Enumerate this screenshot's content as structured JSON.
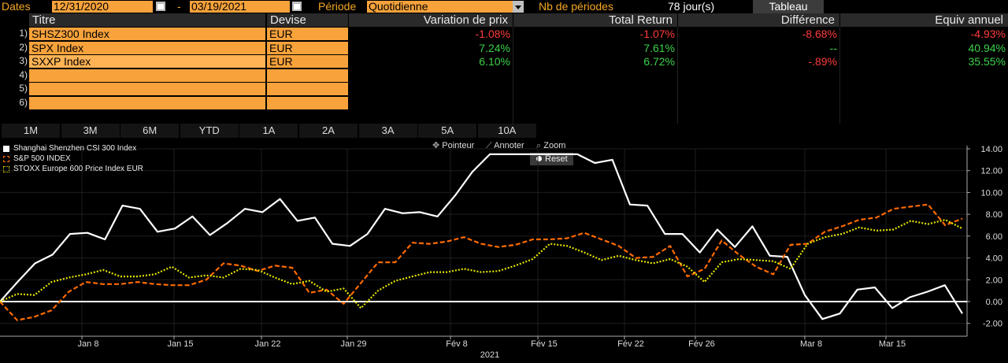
{
  "topbar": {
    "dates_label": "Dates",
    "start_date": "12/31/2020",
    "dash": "-",
    "end_date": "03/19/2021",
    "period_label": "Période",
    "period_value": "Quotidienne",
    "nb_label": "Nb de périodes",
    "nb_value": "78 jour(s)",
    "view_button": "Tableau"
  },
  "table": {
    "headers": {
      "title": "Titre",
      "currency": "Devise",
      "price_change": "Variation de prix",
      "total_return": "Total Return",
      "difference": "Différence",
      "annual_equiv": "Equiv annuel"
    },
    "rows": [
      {
        "num": "1)",
        "title": "SHSZ300 Index",
        "currency": "EUR",
        "price_change": "-1.08%",
        "total_return": "-1.07%",
        "difference": "-8.68%",
        "annual_equiv": "-4.93%"
      },
      {
        "num": "2)",
        "title": "SPX Index",
        "currency": "EUR",
        "price_change": "7.24%",
        "total_return": "7.61%",
        "difference": "--",
        "annual_equiv": "40.94%"
      },
      {
        "num": "3)",
        "title": "SXXP Index",
        "currency": "EUR",
        "price_change": "6.10%",
        "total_return": "6.72%",
        "difference": "-.89%",
        "annual_equiv": "35.55%"
      },
      {
        "num": "4)",
        "title": "",
        "currency": "",
        "price_change": "",
        "total_return": "",
        "difference": "",
        "annual_equiv": ""
      },
      {
        "num": "5)",
        "title": "",
        "currency": "",
        "price_change": "",
        "total_return": "",
        "difference": "",
        "annual_equiv": ""
      },
      {
        "num": "6)",
        "title": "",
        "currency": "",
        "price_change": "",
        "total_return": "",
        "difference": "",
        "annual_equiv": ""
      }
    ]
  },
  "ranges": [
    "1M",
    "3M",
    "6M",
    "YTD",
    "1A",
    "2A",
    "3A",
    "5A",
    "10A"
  ],
  "tools": {
    "pointer": "Pointeur",
    "annotate": "Annoter",
    "zoom": "Zoom",
    "reset": "Reset"
  },
  "colors": {
    "accent": "#f7a23b",
    "negative": "#ff3b3b",
    "positive": "#3cd24a"
  },
  "chart_data": {
    "type": "line",
    "xlabel": "2021",
    "x_ticks": [
      "Jan 8",
      "Jan 15",
      "Jan 22",
      "Jan 29",
      "Fév 8",
      "Fév 15",
      "Fév 22",
      "Fév 26",
      "Mar 8",
      "Mar 15"
    ],
    "y_ticks": [
      "14.00",
      "12.00",
      "10.00",
      "8.00",
      "6.00",
      "4.00",
      "2.00",
      "0.00",
      "-2.00"
    ],
    "ylim": [
      -3.3,
      14.6
    ],
    "grid": true,
    "legend_position": "top-left",
    "series": [
      {
        "name": "Shanghai Shenzhen CSI 300 Index",
        "color": "#ffffff",
        "style": "solid",
        "values": [
          0.0,
          1.8,
          3.5,
          4.3,
          6.2,
          6.3,
          5.7,
          8.8,
          8.5,
          6.4,
          6.7,
          7.8,
          6.1,
          7.2,
          8.5,
          8.2,
          9.4,
          7.4,
          7.7,
          5.3,
          5.1,
          6.2,
          8.5,
          8.1,
          8.2,
          7.8,
          9.7,
          11.9,
          13.5,
          13.5,
          13.5,
          13.5,
          13.5,
          13.5,
          12.7,
          13.0,
          8.9,
          8.8,
          6.2,
          6.2,
          4.5,
          6.6,
          5.0,
          6.9,
          4.2,
          4.1,
          0.6,
          -1.6,
          -1.1,
          1.1,
          1.3,
          -0.6,
          0.4,
          0.9,
          1.5,
          -1.1
        ]
      },
      {
        "name": "S&P 500 INDEX",
        "color": "#ff6a00",
        "style": "dashed",
        "values": [
          0.0,
          -1.7,
          -1.4,
          -0.8,
          0.9,
          1.8,
          1.6,
          1.6,
          1.8,
          1.6,
          1.5,
          1.5,
          2.0,
          3.5,
          3.3,
          2.8,
          3.3,
          3.1,
          0.8,
          1.1,
          -0.2,
          1.7,
          3.6,
          3.6,
          5.4,
          5.3,
          5.5,
          5.9,
          5.3,
          5.0,
          5.2,
          5.7,
          5.7,
          5.8,
          6.3,
          5.7,
          5.1,
          4.0,
          4.1,
          5.1,
          2.3,
          3.0,
          5.6,
          4.3,
          3.2,
          2.5,
          5.2,
          5.3,
          6.4,
          6.9,
          7.5,
          7.7,
          8.5,
          8.7,
          8.9,
          7.0,
          7.6
        ]
      },
      {
        "name": "STOXX Europe 600 Price Index EUR",
        "color": "#e6e600",
        "style": "dotted",
        "values": [
          0.0,
          0.7,
          0.6,
          1.8,
          2.2,
          2.5,
          2.9,
          2.3,
          2.3,
          2.5,
          3.2,
          2.2,
          2.4,
          2.2,
          3.0,
          2.9,
          2.2,
          1.6,
          1.9,
          0.9,
          1.2,
          -0.6,
          1.0,
          1.9,
          2.3,
          2.7,
          2.7,
          3.0,
          2.7,
          2.8,
          3.3,
          3.9,
          5.3,
          5.1,
          4.5,
          3.8,
          4.2,
          3.8,
          3.5,
          3.9,
          3.2,
          1.8,
          3.6,
          3.9,
          3.8,
          3.7,
          3.0,
          5.3,
          5.9,
          6.2,
          6.8,
          6.5,
          6.6,
          7.4,
          7.1,
          7.5,
          6.7
        ]
      }
    ]
  }
}
